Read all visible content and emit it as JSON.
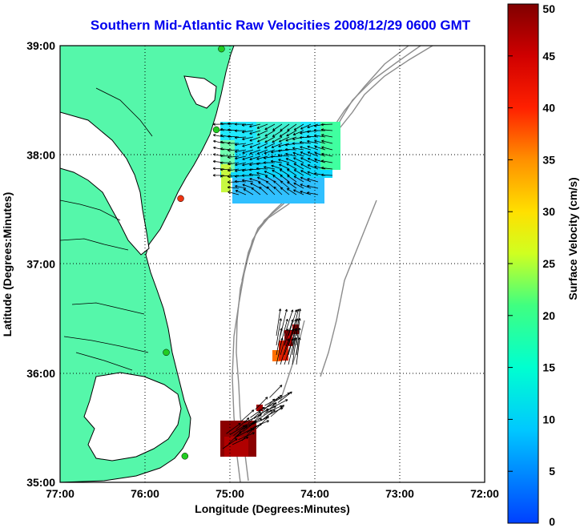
{
  "title": "Southern Mid-Atlantic Raw Velocities 2008/12/29 0600 GMT",
  "axes": {
    "xlabel": "Longitude (Degrees:Minutes)",
    "ylabel": "Latitude (Degrees:Minutes)",
    "x_ticks": [
      "77:00",
      "76:00",
      "75:00",
      "74:00",
      "73:00",
      "72:00"
    ],
    "y_ticks": [
      "39:00",
      "38:00",
      "37:00",
      "36:00",
      "35:00"
    ],
    "x_range_deg": [
      -77,
      -72
    ],
    "y_range_deg": [
      35,
      39
    ]
  },
  "colorbar": {
    "label": "Surface Velocity (cm/s)",
    "ticks": [
      "50",
      "45",
      "40",
      "35",
      "30",
      "25",
      "20",
      "15",
      "10",
      "5",
      "0"
    ],
    "range": [
      0,
      50
    ]
  },
  "colors": {
    "land": "#55f7aa",
    "coast": "#000000",
    "bathymetry": "#8c8c8c",
    "title": "#0000ee",
    "station": "#22cc22",
    "station_alt": "#ee3311"
  },
  "stations": [
    {
      "lon": -75.1,
      "lat": 38.97,
      "status": "active"
    },
    {
      "lon": -75.16,
      "lat": 38.23,
      "status": "active"
    },
    {
      "lon": -75.58,
      "lat": 37.6,
      "status": "offline"
    },
    {
      "lon": -75.75,
      "lat": 36.19,
      "status": "active"
    },
    {
      "lon": -75.53,
      "lat": 35.24,
      "status": "active"
    }
  ],
  "chart_data": {
    "type": "heatmap",
    "description_fields": [
      "north_region",
      "south_region"
    ],
    "north_region": {
      "lon_range": [
        -75.15,
        -73.65
      ],
      "lat_range": [
        37.5,
        38.32
      ],
      "typical_speed_cm_s": [
        5,
        20
      ]
    },
    "south_region": {
      "lon_range": [
        -75.1,
        -74.25
      ],
      "lat_range": [
        35.3,
        36.4
      ],
      "typical_speed_cm_s": [
        35,
        50
      ]
    }
  }
}
